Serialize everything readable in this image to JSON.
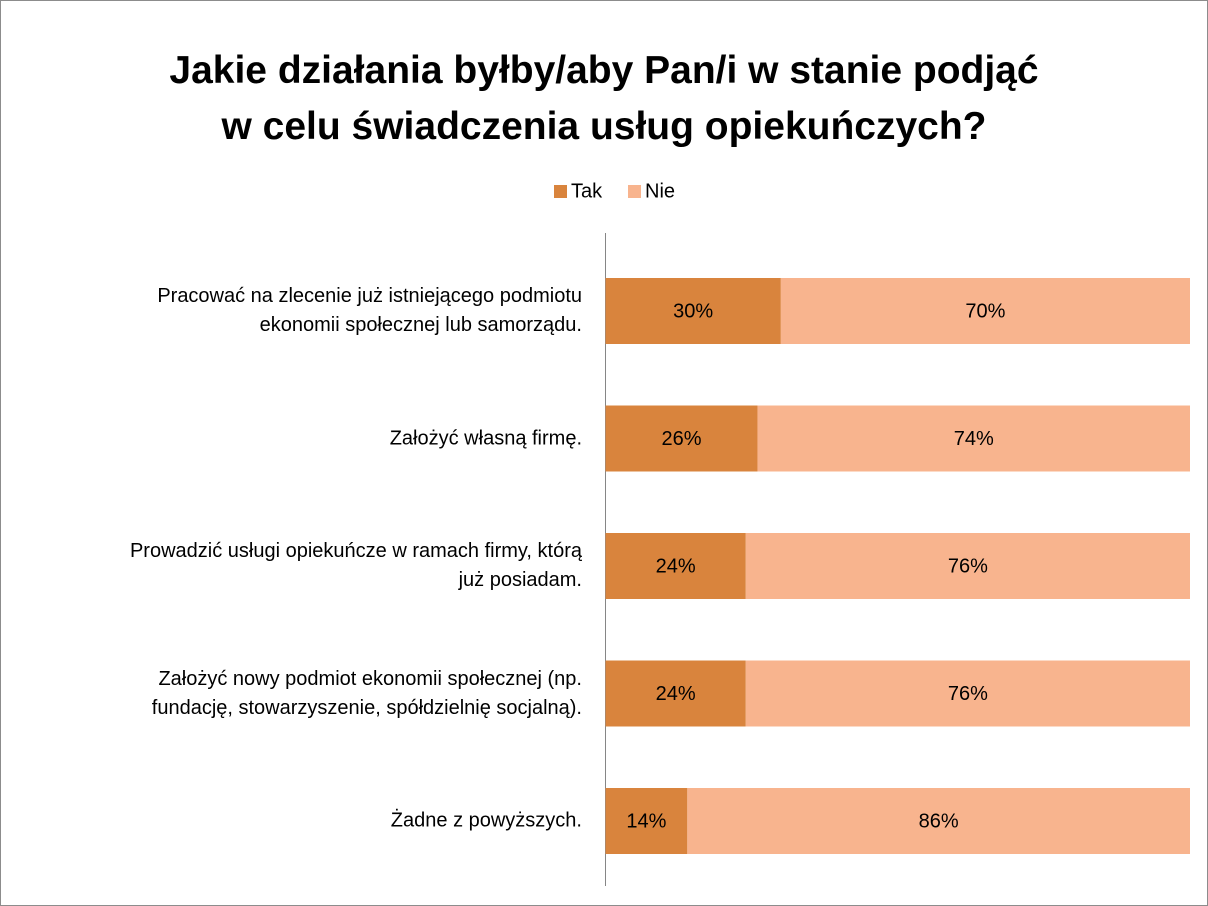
{
  "chart_data": {
    "type": "stacked_bar_horizontal",
    "title": "Jakie działania byłby/aby Pan/i w stanie podjąć\nw celu świadczenia usług opiekuńczych?",
    "categories": [
      "Pracować na zlecenie już istniejącego podmiotu\nekonomii społecznej lub samorządu.",
      "Założyć własną firmę.",
      "Prowadzić usługi opiekuńcze w ramach firmy, którą\njuż posiadam.",
      "Założyć nowy podmiot ekonomii społecznej (np.\nfundację, stowarzyszenie, spółdzielnię socjalną).",
      "Żadne z powyższych."
    ],
    "series": [
      {
        "name": "Tak",
        "color": "#d9843d",
        "values": [
          30,
          26,
          24,
          24,
          14
        ],
        "value_labels": [
          "30%",
          "26%",
          "24%",
          "24%",
          "14%"
        ]
      },
      {
        "name": "Nie",
        "color": "#f8b48e",
        "values": [
          70,
          74,
          76,
          76,
          86
        ],
        "value_labels": [
          "70%",
          "74%",
          "76%",
          "76%",
          "86%"
        ]
      }
    ],
    "xlim": [
      0,
      100
    ],
    "legend": "top"
  }
}
